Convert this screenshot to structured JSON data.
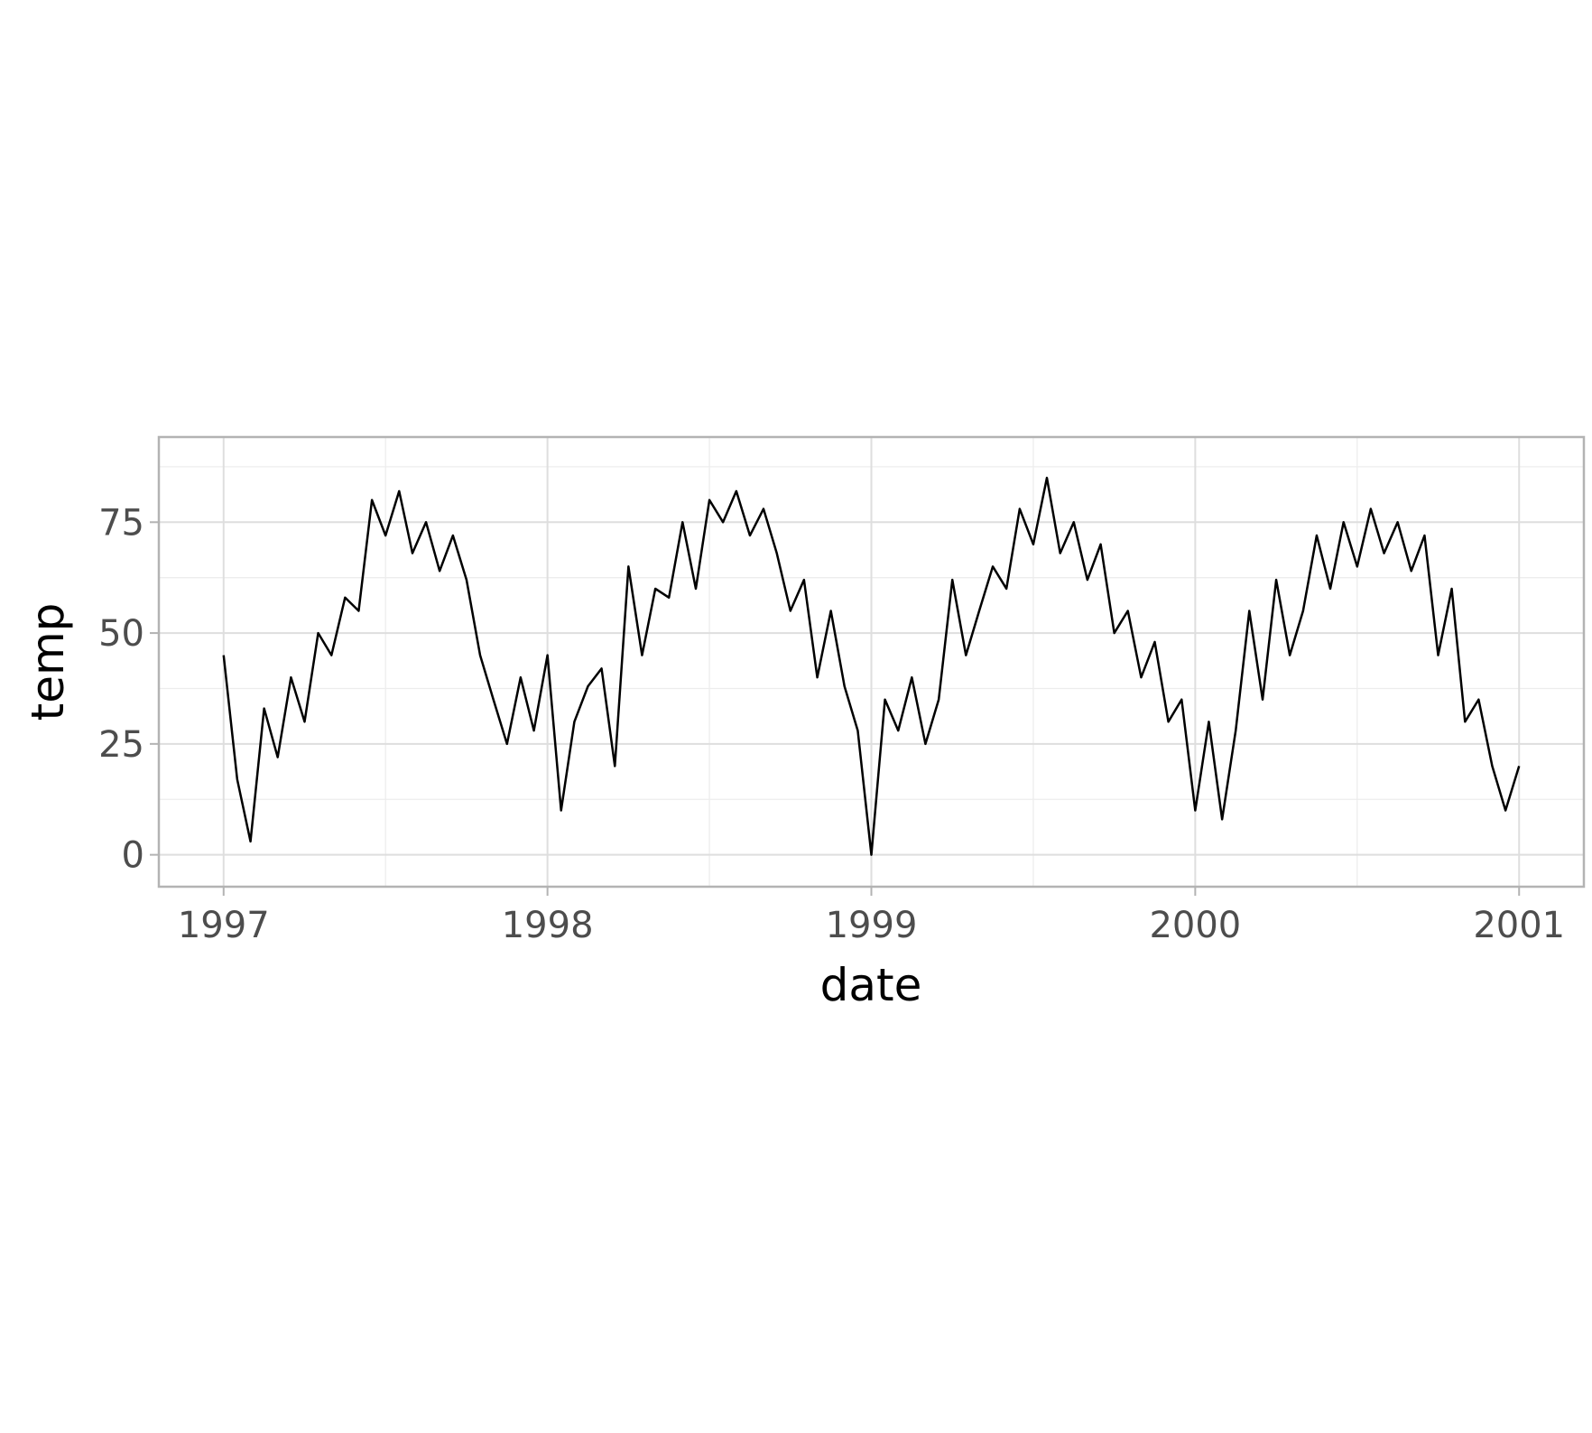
{
  "chart_data": {
    "type": "line",
    "x_label": "date",
    "y_label": "temp",
    "x": [
      1997.0,
      1997.042,
      1997.083,
      1997.125,
      1997.167,
      1997.208,
      1997.25,
      1997.292,
      1997.333,
      1997.375,
      1997.417,
      1997.458,
      1997.5,
      1997.542,
      1997.583,
      1997.625,
      1997.667,
      1997.708,
      1997.75,
      1997.792,
      1997.833,
      1997.875,
      1997.917,
      1997.958,
      1998.0,
      1998.042,
      1998.083,
      1998.125,
      1998.167,
      1998.208,
      1998.25,
      1998.292,
      1998.333,
      1998.375,
      1998.417,
      1998.458,
      1998.5,
      1998.542,
      1998.583,
      1998.625,
      1998.667,
      1998.708,
      1998.75,
      1998.792,
      1998.833,
      1998.875,
      1998.917,
      1998.958,
      1999.0,
      1999.042,
      1999.083,
      1999.125,
      1999.167,
      1999.208,
      1999.25,
      1999.292,
      1999.333,
      1999.375,
      1999.417,
      1999.458,
      1999.5,
      1999.542,
      1999.583,
      1999.625,
      1999.667,
      1999.708,
      1999.75,
      1999.792,
      1999.833,
      1999.875,
      1999.917,
      1999.958,
      2000.0,
      2000.042,
      2000.083,
      2000.125,
      2000.167,
      2000.208,
      2000.25,
      2000.292,
      2000.333,
      2000.375,
      2000.417,
      2000.458,
      2000.5,
      2000.542,
      2000.583,
      2000.625,
      2000.667,
      2000.708,
      2000.75,
      2000.792,
      2000.833,
      2000.875,
      2000.917,
      2000.958,
      2001.0
    ],
    "series": [
      {
        "color": "#000000",
        "values": [
          45,
          17,
          3,
          33,
          22,
          40,
          30,
          50,
          45,
          58,
          55,
          80,
          72,
          82,
          68,
          75,
          64,
          72,
          62,
          45,
          35,
          25,
          40,
          28,
          45,
          10,
          30,
          38,
          42,
          20,
          65,
          45,
          60,
          58,
          75,
          60,
          80,
          75,
          82,
          72,
          78,
          68,
          55,
          62,
          40,
          55,
          38,
          28,
          0,
          35,
          28,
          40,
          25,
          35,
          62,
          45,
          55,
          65,
          60,
          78,
          70,
          85,
          68,
          75,
          62,
          70,
          50,
          55,
          40,
          48,
          30,
          35,
          10,
          30,
          8,
          28,
          55,
          35,
          62,
          45,
          55,
          72,
          60,
          75,
          65,
          78,
          68,
          75,
          64,
          72,
          45,
          60,
          30,
          35,
          20,
          10,
          20
        ]
      }
    ],
    "xlim": [
      1996.8,
      2001.2
    ],
    "xticks": [
      1997,
      1998,
      1999,
      2000,
      2001
    ],
    "ylim": [
      -7.2,
      94.2
    ],
    "yticks": [
      0,
      25,
      50,
      75
    ],
    "grid": true
  }
}
